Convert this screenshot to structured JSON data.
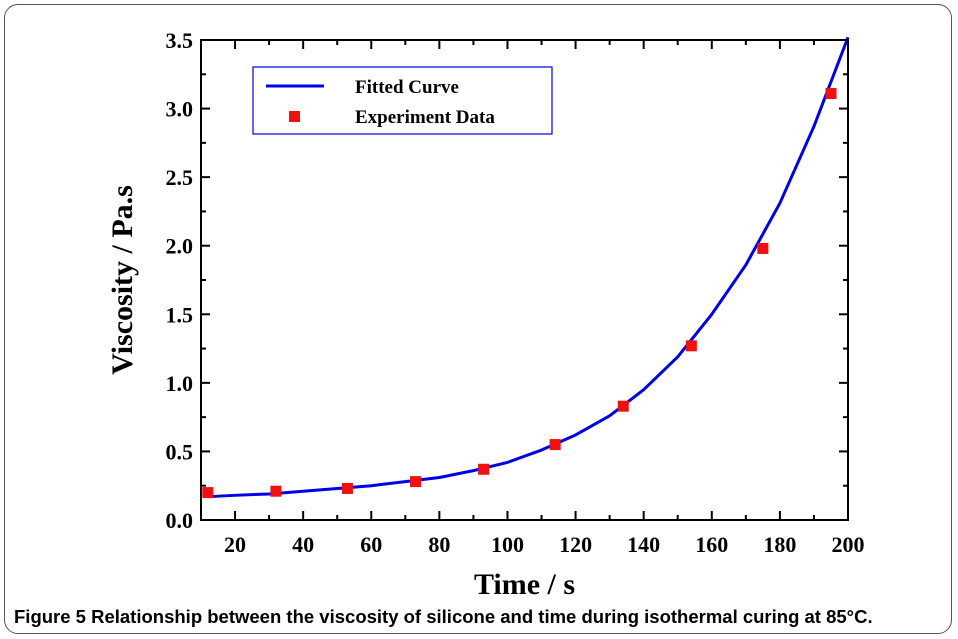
{
  "caption": {
    "figure_number": "Figure 5",
    "text": "Relationship between the viscosity of silicone and time during isothermal curing at 85°C."
  },
  "chart_data": {
    "type": "scatter",
    "xlabel": "Time / s",
    "ylabel": "Viscosity / Pa.s",
    "xlim": [
      10,
      200
    ],
    "ylim": [
      0.0,
      3.5
    ],
    "x_ticks": [
      20,
      40,
      60,
      80,
      100,
      120,
      140,
      160,
      180,
      200
    ],
    "y_ticks": [
      0.0,
      0.5,
      1.0,
      1.5,
      2.0,
      2.5,
      3.0,
      3.5
    ],
    "x_tick_labels": [
      "20",
      "40",
      "60",
      "80",
      "100",
      "120",
      "140",
      "160",
      "180",
      "200"
    ],
    "y_tick_labels": [
      "0.0",
      "0.5",
      "1.0",
      "1.5",
      "2.0",
      "2.5",
      "3.0",
      "3.5"
    ],
    "grid": false,
    "legend_position": "top-left",
    "series": [
      {
        "name": "Fitted Curve",
        "kind": "line",
        "color": "#0000e6",
        "x": [
          12,
          20,
          30,
          40,
          50,
          60,
          70,
          80,
          90,
          100,
          110,
          120,
          130,
          140,
          150,
          160,
          170,
          180,
          190,
          200
        ],
        "y": [
          0.17,
          0.18,
          0.19,
          0.21,
          0.23,
          0.25,
          0.28,
          0.31,
          0.36,
          0.42,
          0.51,
          0.62,
          0.76,
          0.95,
          1.19,
          1.5,
          1.86,
          2.31,
          2.87,
          3.52
        ]
      },
      {
        "name": "Experiment Data",
        "kind": "scatter",
        "marker": "square",
        "color": "#ee1111",
        "x": [
          12,
          32,
          53,
          73,
          93,
          114,
          134,
          154,
          175,
          195
        ],
        "y": [
          0.2,
          0.21,
          0.23,
          0.28,
          0.37,
          0.55,
          0.83,
          1.27,
          1.98,
          3.11
        ]
      }
    ]
  }
}
